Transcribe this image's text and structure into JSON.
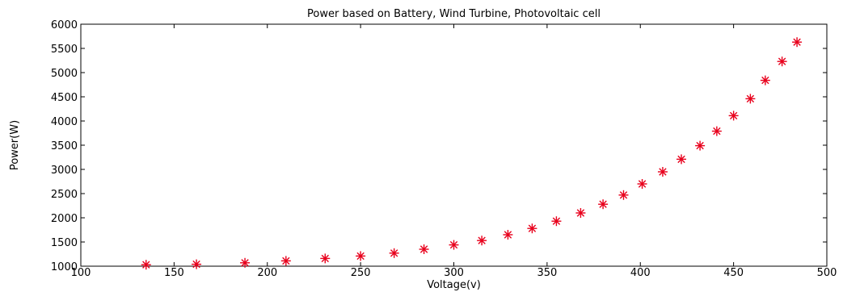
{
  "chart_data": {
    "type": "scatter",
    "title": "Power based on Battery, Wind Turbine, Photovoltaic cell",
    "xlabel": "Voltage(v)",
    "ylabel": "Power(W)",
    "xlim": [
      100,
      500
    ],
    "ylim": [
      1000,
      6000
    ],
    "x_ticks": [
      "100",
      "150",
      "200",
      "250",
      "300",
      "350",
      "400",
      "450",
      "500"
    ],
    "y_ticks": [
      "1000",
      "1500",
      "2000",
      "2500",
      "3000",
      "3500",
      "4000",
      "4500",
      "5000",
      "5500",
      "6000"
    ],
    "grid": false,
    "marker": "*",
    "marker_color": "#e8001c",
    "series": [
      {
        "points": [
          {
            "x": 135,
            "y": 1030
          },
          {
            "x": 162,
            "y": 1040
          },
          {
            "x": 188,
            "y": 1070
          },
          {
            "x": 210,
            "y": 1110
          },
          {
            "x": 231,
            "y": 1160
          },
          {
            "x": 250,
            "y": 1210
          },
          {
            "x": 268,
            "y": 1270
          },
          {
            "x": 284,
            "y": 1350
          },
          {
            "x": 300,
            "y": 1440
          },
          {
            "x": 315,
            "y": 1530
          },
          {
            "x": 329,
            "y": 1650
          },
          {
            "x": 342,
            "y": 1780
          },
          {
            "x": 355,
            "y": 1930
          },
          {
            "x": 368,
            "y": 2100
          },
          {
            "x": 380,
            "y": 2280
          },
          {
            "x": 391,
            "y": 2470
          },
          {
            "x": 401,
            "y": 2700
          },
          {
            "x": 412,
            "y": 2950
          },
          {
            "x": 422,
            "y": 3210
          },
          {
            "x": 432,
            "y": 3490
          },
          {
            "x": 441,
            "y": 3790
          },
          {
            "x": 450,
            "y": 4110
          },
          {
            "x": 459,
            "y": 4460
          },
          {
            "x": 467,
            "y": 4840
          },
          {
            "x": 476,
            "y": 5230
          },
          {
            "x": 484,
            "y": 5630
          }
        ]
      }
    ]
  }
}
